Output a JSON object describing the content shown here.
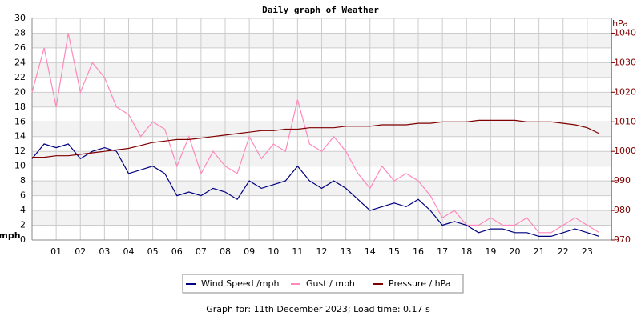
{
  "chart_data": {
    "type": "line",
    "title": "Daily graph of Weather",
    "y_label": "mph",
    "y2_label": "hPa",
    "footer": "Graph for: 11th December 2023; Load time: 0.17 s",
    "x": [
      0,
      0.5,
      1,
      1.5,
      2,
      2.5,
      3,
      3.5,
      4,
      4.5,
      5,
      5.5,
      6,
      6.5,
      7,
      7.5,
      8,
      8.5,
      9,
      9.5,
      10,
      10.5,
      11,
      11.5,
      12,
      12.5,
      13,
      13.5,
      14,
      14.5,
      15,
      15.5,
      16,
      16.5,
      17,
      17.5,
      18,
      18.5,
      19,
      19.5,
      20,
      20.5,
      21,
      21.5,
      22,
      22.5,
      23,
      23.5
    ],
    "xlim": [
      0,
      24
    ],
    "xticks": [
      {
        "value": 1,
        "label": "01"
      },
      {
        "value": 2,
        "label": "02"
      },
      {
        "value": 3,
        "label": "03"
      },
      {
        "value": 4,
        "label": "04"
      },
      {
        "value": 5,
        "label": "05"
      },
      {
        "value": 6,
        "label": "06"
      },
      {
        "value": 7,
        "label": "07"
      },
      {
        "value": 8,
        "label": "08"
      },
      {
        "value": 9,
        "label": "09"
      },
      10,
      11,
      12,
      13,
      14,
      15,
      16,
      17,
      18,
      19,
      20,
      21,
      22,
      23
    ],
    "ylim": [
      0,
      30
    ],
    "yticks": [
      0,
      2,
      4,
      6,
      8,
      10,
      12,
      14,
      16,
      18,
      20,
      22,
      24,
      26,
      28,
      30
    ],
    "y2lim": [
      970,
      1045
    ],
    "y2ticks": [
      970,
      980,
      990,
      1000,
      1010,
      1020,
      1030,
      1040
    ],
    "grid": true,
    "series": [
      {
        "name": "Wind Speed /mph",
        "color": "#000080",
        "values": [
          11,
          13,
          12.5,
          13,
          11,
          12,
          12.5,
          12,
          9,
          9.5,
          10,
          9,
          6,
          6.5,
          6,
          7,
          6.5,
          5.5,
          8,
          7,
          7.5,
          8,
          10,
          8,
          7,
          8,
          7,
          5.5,
          4,
          4.5,
          5,
          4.5,
          5.5,
          4,
          2,
          2.5,
          2,
          1,
          1.5,
          1.5,
          1,
          1,
          0.5,
          0.5,
          1,
          1.5,
          1,
          0.5
        ]
      },
      {
        "name": "Gust / mph",
        "color": "#ff88bb",
        "values": [
          20,
          26,
          18,
          28,
          20,
          24,
          22,
          18,
          17,
          14,
          16,
          15,
          10,
          14,
          9,
          12,
          10,
          9,
          14,
          11,
          13,
          12,
          19,
          13,
          12,
          14,
          12,
          9,
          7,
          10,
          8,
          9,
          8,
          6,
          3,
          4,
          2,
          2,
          3,
          2,
          2,
          3,
          1,
          1,
          2,
          3,
          2,
          1
        ]
      },
      {
        "name": "Pressure / hPa",
        "color": "#800000",
        "axis": "y2",
        "values": [
          998,
          998,
          998.5,
          998.5,
          999,
          999.5,
          1000,
          1000.5,
          1001,
          1002,
          1003,
          1003.5,
          1004,
          1004,
          1004.5,
          1005,
          1005.5,
          1006,
          1006.5,
          1007,
          1007,
          1007.5,
          1007.5,
          1008,
          1008,
          1008,
          1008.5,
          1008.5,
          1008.5,
          1009,
          1009,
          1009,
          1009.5,
          1009.5,
          1010,
          1010,
          1010,
          1010.5,
          1010.5,
          1010.5,
          1010.5,
          1010,
          1010,
          1010,
          1009.5,
          1009,
          1008,
          1006
        ]
      }
    ]
  }
}
